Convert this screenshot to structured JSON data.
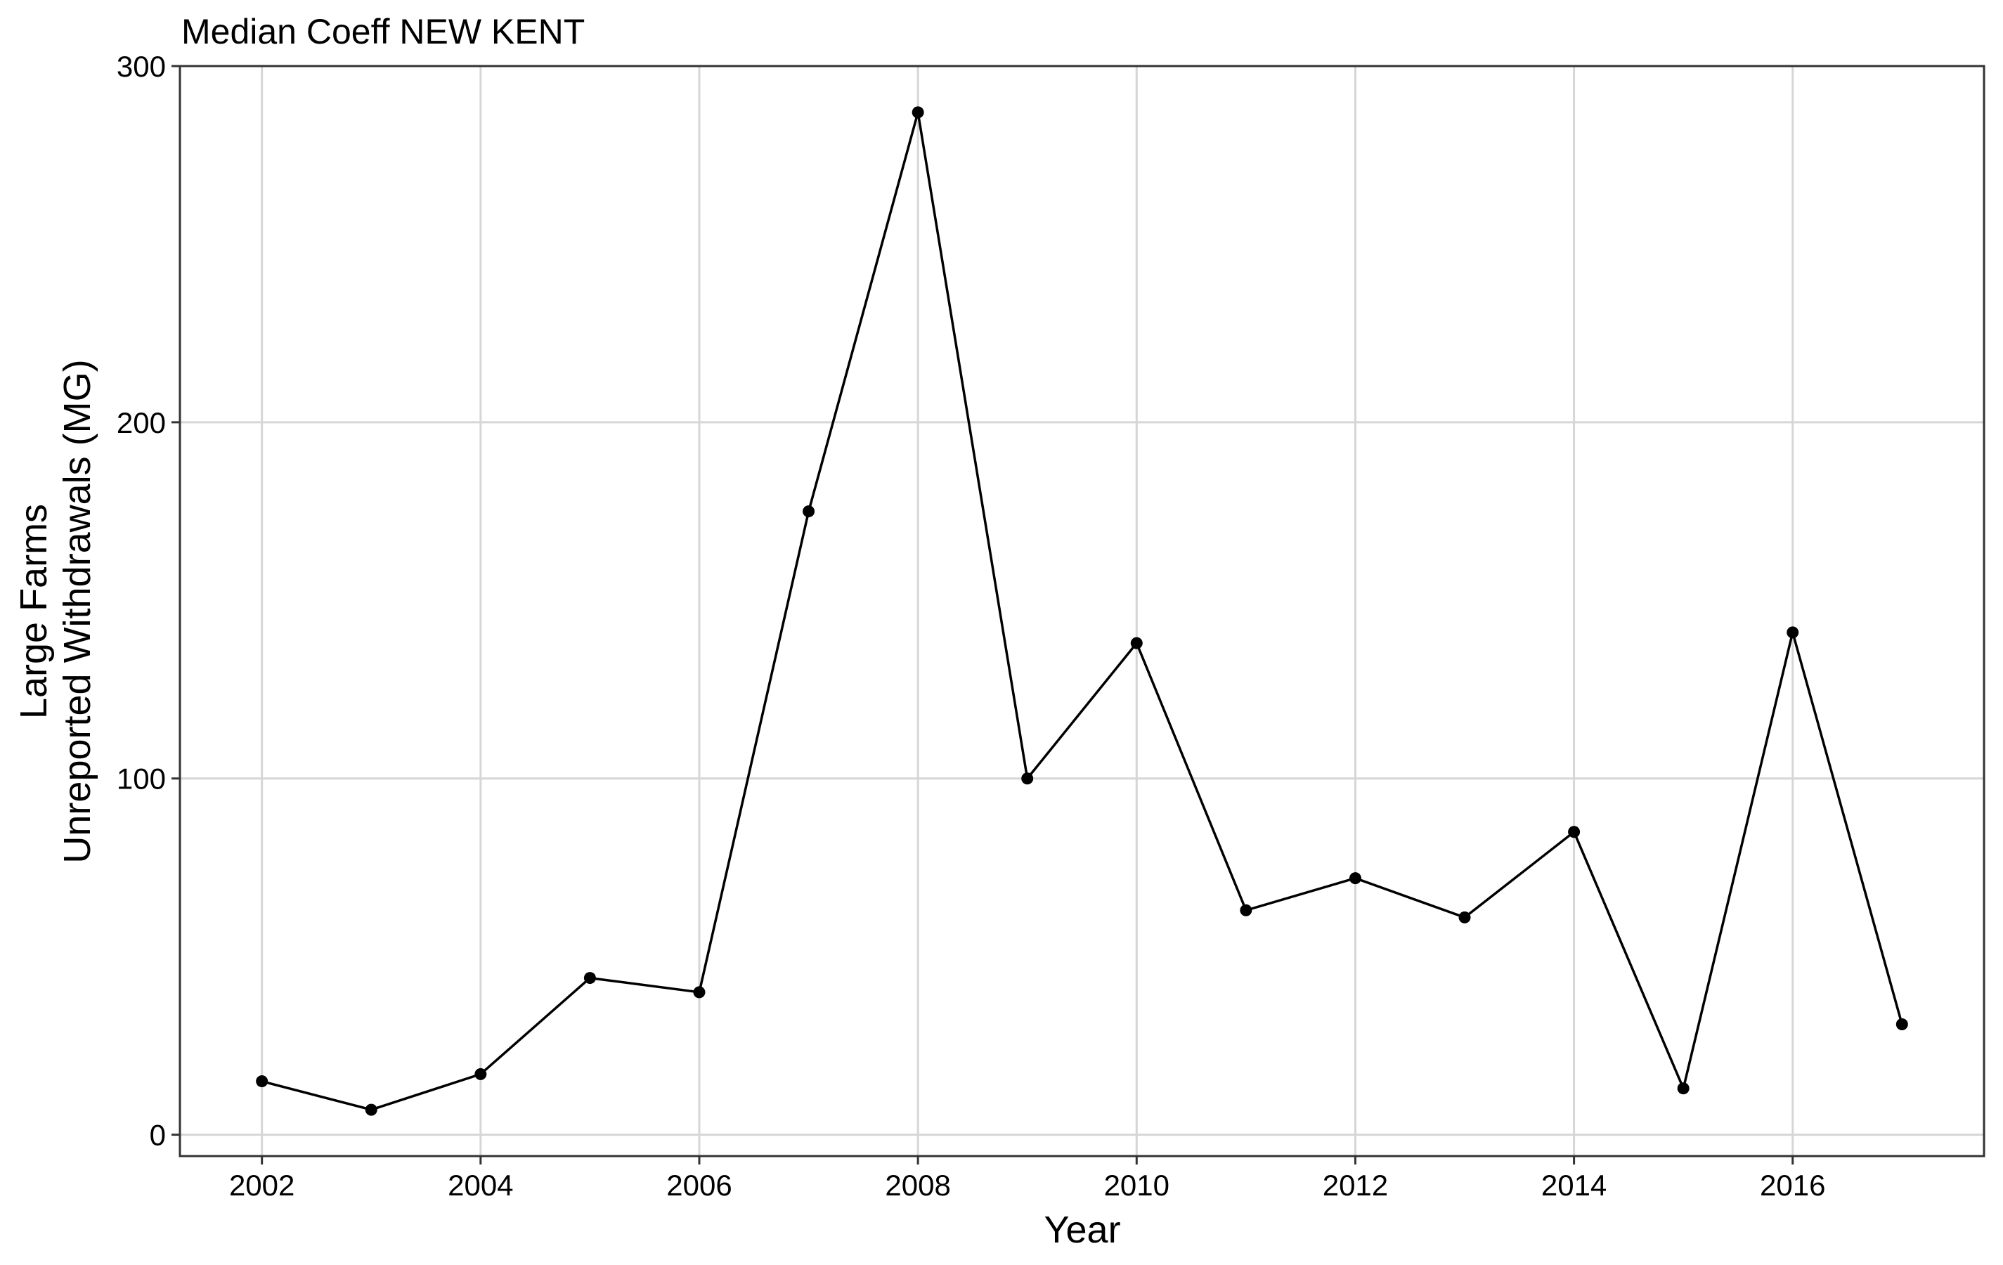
{
  "chart_data": {
    "type": "line",
    "title": "Median Coeff NEW KENT",
    "xlabel": "Year",
    "ylabel_lines": [
      "Large Farms",
      "Unreported Withdrawals (MG)"
    ],
    "x_ticks": [
      2002,
      2004,
      2006,
      2008,
      2010,
      2012,
      2014,
      2016
    ],
    "y_ticks": [
      0,
      100,
      200,
      300
    ],
    "xlim": [
      2001.25,
      2017.75
    ],
    "ylim": [
      -6,
      300
    ],
    "grid": true,
    "legend": "none",
    "line_color": "#000000",
    "grid_color": "#d6d6d6",
    "series": [
      {
        "x": [
          2002,
          2003,
          2004,
          2005,
          2006,
          2007,
          2008,
          2009,
          2010,
          2011,
          2012,
          2013,
          2014,
          2015,
          2016,
          2017
        ],
        "values": [
          15,
          7,
          17,
          44,
          40,
          175,
          287,
          100,
          138,
          63,
          72,
          61,
          85,
          13,
          141,
          31
        ]
      }
    ]
  }
}
